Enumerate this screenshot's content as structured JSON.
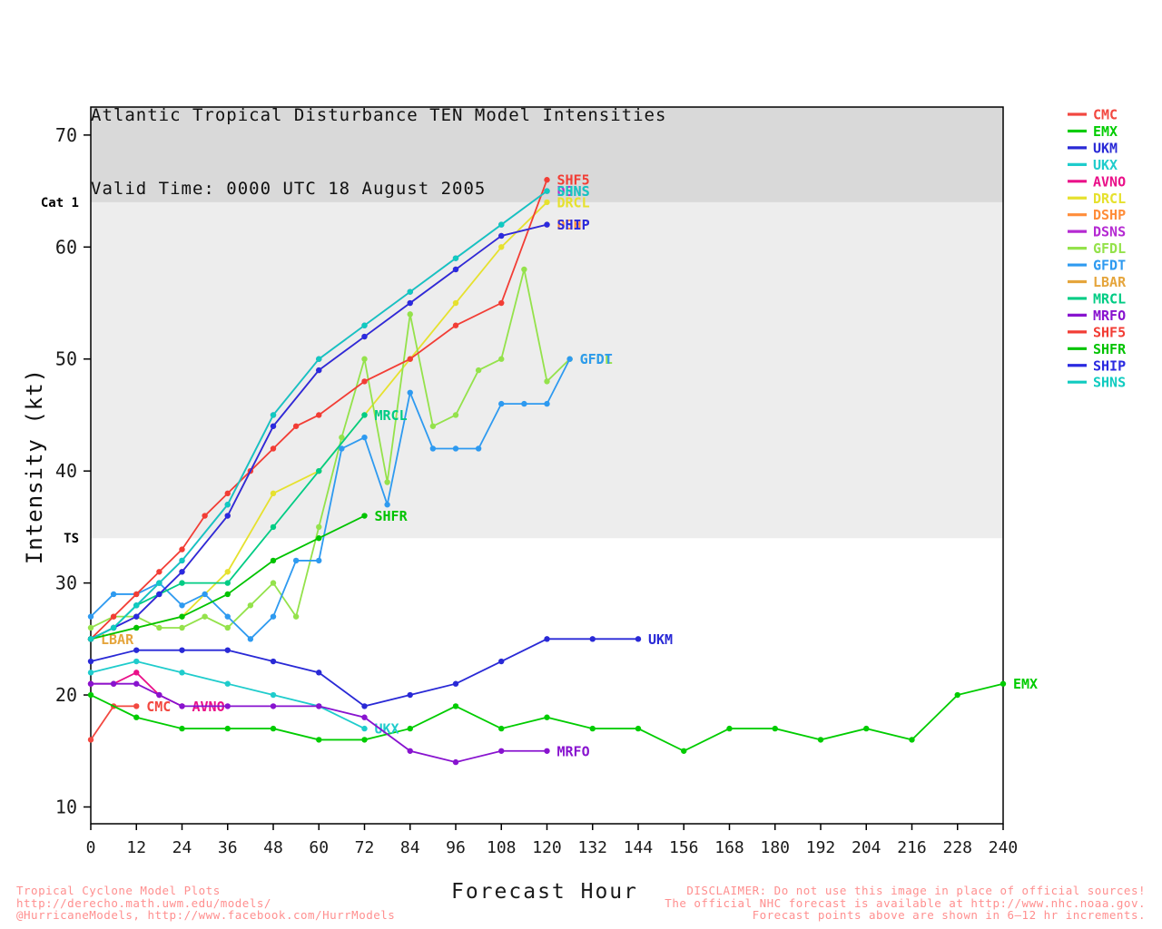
{
  "title": {
    "line1": "Atlantic Tropical Disturbance TEN Model Intensities",
    "line2": "Valid Time: 0000 UTC 18 August 2005"
  },
  "chart_data": {
    "type": "line",
    "title": "Atlantic Tropical Disturbance TEN Model Intensities",
    "subtitle": "Valid Time: 0000 UTC 18 August 2005",
    "xlabel": "Forecast Hour",
    "ylabel": "Intensity (kt)",
    "xlim": [
      0,
      240
    ],
    "ylim": [
      8.5,
      72.5
    ],
    "xticks": [
      0,
      12,
      24,
      36,
      48,
      60,
      72,
      84,
      96,
      108,
      120,
      132,
      144,
      156,
      168,
      180,
      192,
      204,
      216,
      228,
      240
    ],
    "yticks": [
      10,
      20,
      30,
      40,
      50,
      60,
      70
    ],
    "grid": false,
    "legend_position": "right-outside",
    "reference_bands": [
      {
        "label": "Cat 1",
        "from": 64,
        "to": 72.5,
        "color": "#d9d9d9"
      },
      {
        "label": "TS",
        "from": 34,
        "to": 64,
        "color": "#ededed"
      }
    ],
    "series": [
      {
        "name": "CMC",
        "color": "#f24840",
        "points": [
          [
            0,
            16
          ],
          [
            6,
            19
          ],
          [
            12,
            19
          ]
        ]
      },
      {
        "name": "EMX",
        "color": "#00cc00",
        "points": [
          [
            0,
            20
          ],
          [
            12,
            18
          ],
          [
            24,
            17
          ],
          [
            36,
            17
          ],
          [
            48,
            17
          ],
          [
            60,
            16
          ],
          [
            72,
            16
          ],
          [
            84,
            17
          ],
          [
            96,
            19
          ],
          [
            108,
            17
          ],
          [
            120,
            18
          ],
          [
            132,
            17
          ],
          [
            144,
            17
          ],
          [
            156,
            15
          ],
          [
            168,
            17
          ],
          [
            180,
            17
          ],
          [
            192,
            16
          ],
          [
            204,
            17
          ],
          [
            216,
            16
          ],
          [
            228,
            20
          ],
          [
            240,
            21
          ]
        ]
      },
      {
        "name": "UKM",
        "color": "#2929d6",
        "points": [
          [
            0,
            23
          ],
          [
            12,
            24
          ],
          [
            24,
            24
          ],
          [
            36,
            24
          ],
          [
            48,
            23
          ],
          [
            60,
            22
          ],
          [
            72,
            19
          ],
          [
            84,
            20
          ],
          [
            96,
            21
          ],
          [
            108,
            23
          ],
          [
            120,
            25
          ],
          [
            132,
            25
          ],
          [
            144,
            25
          ]
        ]
      },
      {
        "name": "UKX",
        "color": "#1fcccc",
        "points": [
          [
            0,
            22
          ],
          [
            12,
            23
          ],
          [
            24,
            22
          ],
          [
            36,
            21
          ],
          [
            48,
            20
          ],
          [
            60,
            19
          ],
          [
            72,
            17
          ]
        ]
      },
      {
        "name": "AVNO",
        "color": "#ea1089",
        "points": [
          [
            0,
            21
          ],
          [
            6,
            21
          ],
          [
            12,
            22
          ],
          [
            18,
            20
          ],
          [
            24,
            19
          ]
        ]
      },
      {
        "name": "DRCL",
        "color": "#e6e12e",
        "points": [
          [
            0,
            25
          ],
          [
            12,
            26
          ],
          [
            24,
            27
          ],
          [
            36,
            31
          ],
          [
            48,
            38
          ],
          [
            60,
            40
          ],
          [
            72,
            45
          ],
          [
            84,
            50
          ],
          [
            96,
            55
          ],
          [
            108,
            60
          ],
          [
            120,
            64
          ]
        ]
      },
      {
        "name": "DSHP",
        "color": "#ff8d3a",
        "points": [
          [
            0,
            25
          ],
          [
            6,
            26
          ],
          [
            12,
            27
          ],
          [
            18,
            29
          ],
          [
            24,
            31
          ],
          [
            36,
            36
          ],
          [
            48,
            44
          ],
          [
            60,
            49
          ],
          [
            72,
            52
          ],
          [
            84,
            55
          ],
          [
            96,
            58
          ],
          [
            108,
            61
          ],
          [
            120,
            62
          ]
        ]
      },
      {
        "name": "DSNS",
        "color": "#b52ad2",
        "points": [
          [
            0,
            25
          ],
          [
            6,
            26
          ],
          [
            12,
            28
          ],
          [
            18,
            30
          ],
          [
            24,
            32
          ],
          [
            36,
            37
          ],
          [
            48,
            45
          ],
          [
            60,
            50
          ],
          [
            72,
            53
          ],
          [
            84,
            56
          ],
          [
            96,
            59
          ],
          [
            108,
            62
          ],
          [
            120,
            65
          ]
        ]
      },
      {
        "name": "GFDL",
        "color": "#94e24b",
        "points": [
          [
            0,
            26
          ],
          [
            6,
            27
          ],
          [
            12,
            27
          ],
          [
            18,
            26
          ],
          [
            24,
            26
          ],
          [
            30,
            27
          ],
          [
            36,
            26
          ],
          [
            42,
            28
          ],
          [
            48,
            30
          ],
          [
            54,
            27
          ],
          [
            60,
            35
          ],
          [
            66,
            43
          ],
          [
            72,
            50
          ],
          [
            78,
            39
          ],
          [
            84,
            54
          ],
          [
            90,
            44
          ],
          [
            96,
            45
          ],
          [
            102,
            49
          ],
          [
            108,
            50
          ],
          [
            114,
            58
          ],
          [
            120,
            48
          ],
          [
            126,
            50
          ]
        ]
      },
      {
        "name": "GFDT",
        "color": "#2e9af0",
        "points": [
          [
            0,
            27
          ],
          [
            6,
            29
          ],
          [
            12,
            29
          ],
          [
            18,
            30
          ],
          [
            24,
            28
          ],
          [
            30,
            29
          ],
          [
            36,
            27
          ],
          [
            42,
            25
          ],
          [
            48,
            27
          ],
          [
            54,
            32
          ],
          [
            60,
            32
          ],
          [
            66,
            42
          ],
          [
            72,
            43
          ],
          [
            78,
            37
          ],
          [
            84,
            47
          ],
          [
            90,
            42
          ],
          [
            96,
            42
          ],
          [
            102,
            42
          ],
          [
            108,
            46
          ],
          [
            114,
            46
          ],
          [
            120,
            46
          ],
          [
            126,
            50
          ]
        ]
      },
      {
        "name": "LBAR",
        "color": "#e5a53c",
        "points": [
          [
            0,
            25
          ]
        ]
      },
      {
        "name": "MRCL",
        "color": "#00cc84",
        "points": [
          [
            0,
            25
          ],
          [
            6,
            26
          ],
          [
            12,
            28
          ],
          [
            18,
            29
          ],
          [
            24,
            30
          ],
          [
            36,
            30
          ],
          [
            48,
            35
          ],
          [
            60,
            40
          ],
          [
            72,
            45
          ]
        ]
      },
      {
        "name": "MRFO",
        "color": "#8813cf",
        "points": [
          [
            0,
            21
          ],
          [
            6,
            21
          ],
          [
            12,
            21
          ],
          [
            18,
            20
          ],
          [
            24,
            19
          ],
          [
            36,
            19
          ],
          [
            48,
            19
          ],
          [
            60,
            19
          ],
          [
            72,
            18
          ],
          [
            84,
            15
          ],
          [
            96,
            14
          ],
          [
            108,
            15
          ],
          [
            120,
            15
          ]
        ]
      },
      {
        "name": "SHF5",
        "color": "#f23d35",
        "points": [
          [
            0,
            25
          ],
          [
            6,
            27
          ],
          [
            12,
            29
          ],
          [
            18,
            31
          ],
          [
            24,
            33
          ],
          [
            30,
            36
          ],
          [
            36,
            38
          ],
          [
            42,
            40
          ],
          [
            48,
            42
          ],
          [
            54,
            44
          ],
          [
            60,
            45
          ],
          [
            72,
            48
          ],
          [
            84,
            50
          ],
          [
            96,
            53
          ],
          [
            108,
            55
          ],
          [
            120,
            66
          ]
        ]
      },
      {
        "name": "SHFR",
        "color": "#00c300",
        "points": [
          [
            0,
            25
          ],
          [
            12,
            26
          ],
          [
            24,
            27
          ],
          [
            36,
            29
          ],
          [
            48,
            32
          ],
          [
            60,
            34
          ],
          [
            72,
            36
          ]
        ]
      },
      {
        "name": "SHIP",
        "color": "#2a2ae0",
        "points": [
          [
            0,
            25
          ],
          [
            6,
            26
          ],
          [
            12,
            27
          ],
          [
            18,
            29
          ],
          [
            24,
            31
          ],
          [
            36,
            36
          ],
          [
            48,
            44
          ],
          [
            60,
            49
          ],
          [
            72,
            52
          ],
          [
            84,
            55
          ],
          [
            96,
            58
          ],
          [
            108,
            61
          ],
          [
            120,
            62
          ]
        ]
      },
      {
        "name": "SHNS",
        "color": "#10cbc0",
        "points": [
          [
            0,
            25
          ],
          [
            6,
            26
          ],
          [
            12,
            28
          ],
          [
            18,
            30
          ],
          [
            24,
            32
          ],
          [
            36,
            37
          ],
          [
            48,
            45
          ],
          [
            60,
            50
          ],
          [
            72,
            53
          ],
          [
            84,
            56
          ],
          [
            96,
            59
          ],
          [
            108,
            62
          ],
          [
            120,
            65
          ]
        ]
      }
    ]
  },
  "footer": {
    "left": [
      "Tropical Cyclone Model Plots",
      "http://derecho.math.uwm.edu/models/",
      "@HurricaneModels, http://www.facebook.com/HurrModels"
    ],
    "right": [
      "DISCLAIMER: Do not use this image in place of official sources!",
      "The official NHC forecast is available at http://www.nhc.noaa.gov.",
      "Forecast points above are shown in 6–12 hr increments."
    ]
  }
}
